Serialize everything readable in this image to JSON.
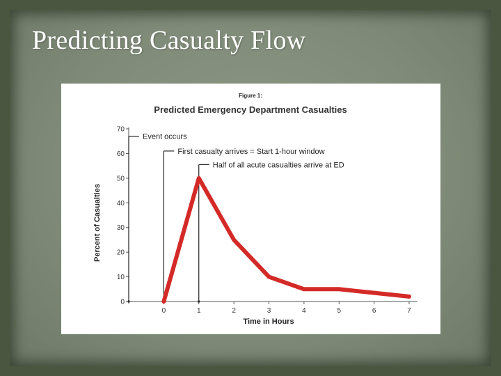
{
  "slide": {
    "title": "Predicting Casualty Flow"
  },
  "colors": {
    "line": "#d42a27",
    "axis": "#555555",
    "annotation_line": "#222222"
  },
  "chart_data": {
    "type": "line",
    "figure_label": "Figure 1:",
    "title": "Predicted Emergency Department Casualties",
    "xlabel": "Time in Hours",
    "ylabel": "Percent of Casualties",
    "xlim": [
      -1,
      7
    ],
    "ylim": [
      0,
      70
    ],
    "x_ticks": [
      0,
      1,
      2,
      3,
      4,
      5,
      6,
      7
    ],
    "y_ticks": [
      0,
      10,
      20,
      30,
      40,
      50,
      60,
      70
    ],
    "grid": false,
    "series": [
      {
        "x": [
          0,
          1,
          2,
          3,
          4,
          5,
          6,
          7
        ],
        "values": [
          0,
          50,
          25,
          10,
          5,
          5,
          3.5,
          2
        ]
      }
    ],
    "annotations": [
      {
        "x": -1,
        "y": 67,
        "text": "Event occurs"
      },
      {
        "x": 0,
        "y": 61,
        "text": "First casualty arrives = Start 1-hour window"
      },
      {
        "x": 1,
        "y": 55.5,
        "text": "Half of all acute casualties arrive at ED"
      }
    ]
  }
}
